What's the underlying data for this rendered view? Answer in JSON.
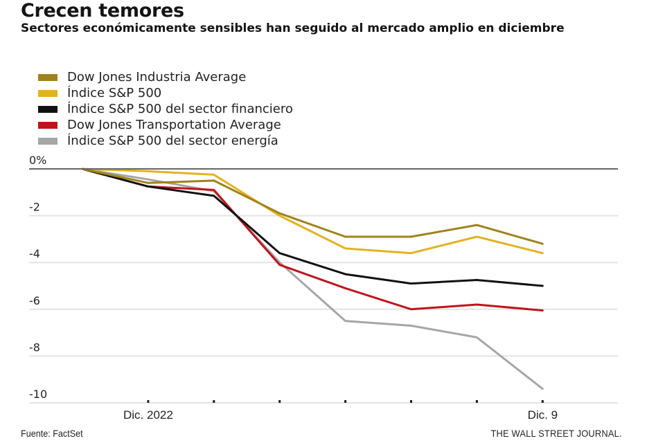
{
  "chart_data": {
    "type": "line",
    "title": "Crecen temores",
    "subtitle": "Sectores económicamente sensibles han seguido al mercado amplio en diciembre",
    "xlabel": "",
    "ylabel": "",
    "x": [
      0,
      1,
      2,
      3,
      4,
      5,
      6,
      7
    ],
    "x_tick_labels": [
      "",
      "Dic. 2022",
      "",
      "",
      "",
      "",
      "",
      "Dic. 9"
    ],
    "y_ticks": [
      0,
      -2,
      -4,
      -6,
      -8,
      -10
    ],
    "y_tick_labels": [
      "0%",
      "-2",
      "-4",
      "-6",
      "-8",
      "-10"
    ],
    "ylim": [
      -10,
      0
    ],
    "grid": true,
    "legend_position": "top-left",
    "series": [
      {
        "name": "Dow Jones Industria Average",
        "color": "#a0821c",
        "values": [
          0,
          -0.6,
          -0.5,
          -1.9,
          -2.9,
          -2.9,
          -2.4,
          -3.2
        ]
      },
      {
        "name": "Índice S&P 500",
        "color": "#e2b21f",
        "values": [
          0,
          -0.1,
          -0.25,
          -2.0,
          -3.4,
          -3.6,
          -2.9,
          -3.6
        ]
      },
      {
        "name": "Índice S&P 500 del sector financiero",
        "color": "#111111",
        "values": [
          0,
          -0.75,
          -1.15,
          -3.6,
          -4.5,
          -4.9,
          -4.75,
          -5.0
        ]
      },
      {
        "name": "Dow Jones Transportation Average",
        "color": "#c0141c",
        "values": [
          0,
          -0.75,
          -0.9,
          -4.1,
          -5.1,
          -6.0,
          -5.8,
          -6.05
        ]
      },
      {
        "name": "Índice S&P 500 del sector energía",
        "color": "#a6a6a6",
        "values": [
          0,
          -0.45,
          -0.95,
          -4.0,
          -6.5,
          -6.7,
          -7.2,
          -9.4
        ]
      }
    ]
  },
  "footer": {
    "source": "Fuente: FactSet",
    "brand": "THE WALL STREET JOURNAL."
  }
}
